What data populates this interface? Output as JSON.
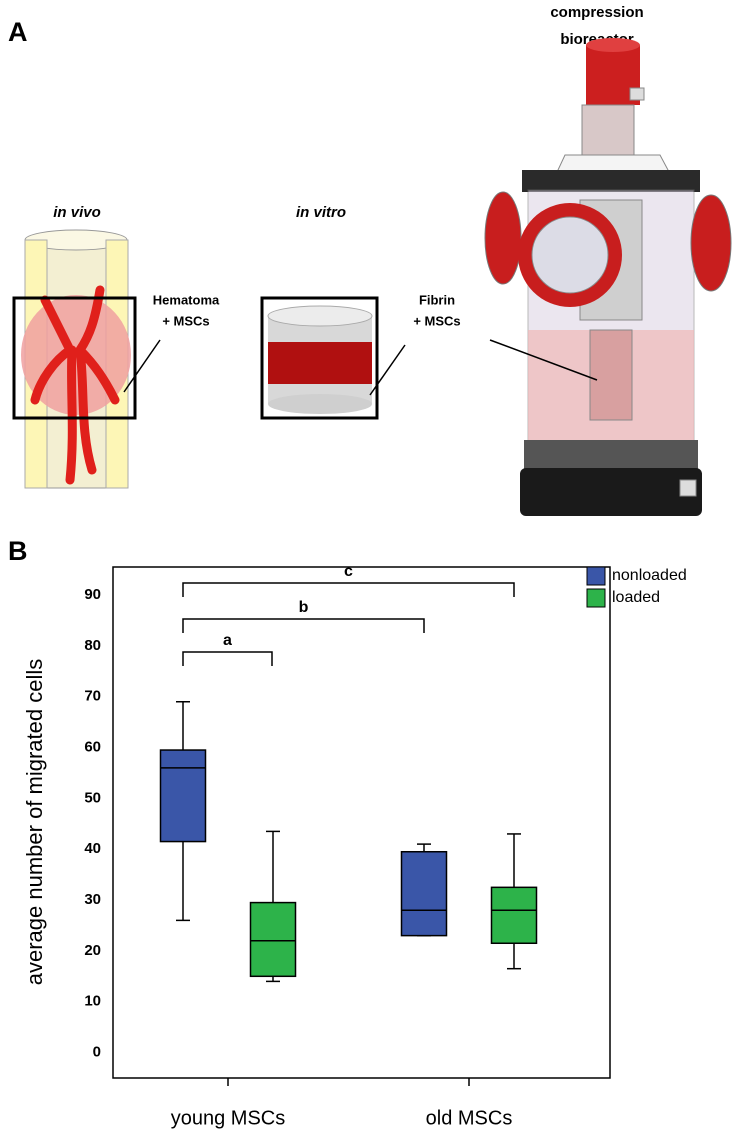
{
  "panel_a": {
    "label": "A",
    "title_lines": [
      "compression",
      "bioreactor"
    ],
    "in_vivo": "in vivo",
    "in_vitro": "in vitro",
    "hematoma_lines": [
      "Hematoma",
      "+ MSCs"
    ],
    "fibrin_lines": [
      "Fibrin",
      "+ MSCs"
    ]
  },
  "panel_b_label": "B",
  "chart_data": {
    "type": "box",
    "y_label": "average number of migrated cells",
    "categories": [
      "young MSCs",
      "old MSCs"
    ],
    "series": [
      {
        "name": "nonloaded",
        "color": "#3a56a8",
        "values": [
          {
            "min": 26,
            "q1": 41.5,
            "median": 56,
            "q3": 59.5,
            "max": 69
          },
          {
            "min": 23,
            "q1": 23,
            "median": 28,
            "q3": 39.5,
            "max": 41
          }
        ]
      },
      {
        "name": "loaded",
        "color": "#2db34a",
        "values": [
          {
            "min": 14,
            "q1": 15,
            "median": 22,
            "q3": 29.5,
            "max": 43.5
          },
          {
            "min": 16.5,
            "q1": 21.5,
            "median": 28,
            "q3": 32.5,
            "max": 43
          }
        ]
      }
    ],
    "annotations": [
      "a",
      "b",
      "c"
    ],
    "ylim": [
      -5,
      95.5
    ],
    "yticks": [
      0,
      10,
      20,
      30,
      40,
      50,
      60,
      70,
      80,
      90
    ],
    "grid": false,
    "legend": "top-right"
  }
}
